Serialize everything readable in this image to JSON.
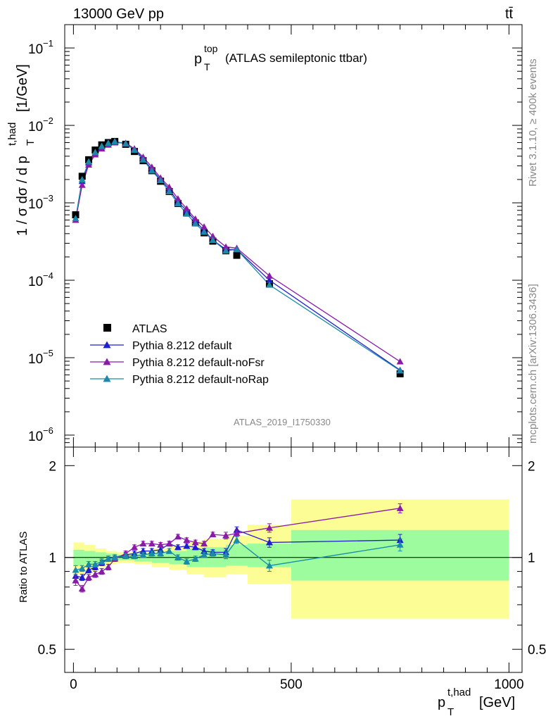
{
  "header": {
    "energy": "13000 GeV pp",
    "process": "tt̄"
  },
  "side": {
    "rivet": "Rivet 3.1.10, ≥ 400k events",
    "mcplots": "mcplots.cern.ch [arXiv:1306.3436]"
  },
  "main_plot": {
    "title_main": "p",
    "title_sup": "top",
    "title_sub": "T",
    "title_rest": "(ATLAS semileptonic ttbar)",
    "ylabel_left": "1 / σ dσ / d p",
    "ylabel_sub": "T",
    "ylabel_sup": "t,had",
    "ylabel_unit": "[1/GeV]",
    "analysis_id": "ATLAS_2019_I1750330",
    "y_ticks": [
      {
        "exp": -1,
        "label": "10",
        "sup": "−1"
      },
      {
        "exp": -2,
        "label": "10",
        "sup": "−2"
      },
      {
        "exp": -3,
        "label": "10",
        "sup": "−3"
      },
      {
        "exp": -4,
        "label": "10",
        "sup": "−4"
      },
      {
        "exp": -5,
        "label": "10",
        "sup": "−5"
      },
      {
        "exp": -6,
        "label": "10",
        "sup": "−6"
      }
    ]
  },
  "ratio_plot": {
    "ylabel": "Ratio to ATLAS",
    "y_ticks": [
      "2",
      "1",
      "0.5"
    ],
    "y_tick_values": [
      2,
      1,
      0.5
    ]
  },
  "x_axis": {
    "label_main": "p",
    "label_sub": "T",
    "label_sup": "t,had",
    "label_unit": "[GeV]",
    "ticks": [
      "0",
      "500",
      "1000"
    ],
    "tick_values": [
      0,
      500,
      1000
    ]
  },
  "legend": [
    {
      "name": "ATLAS",
      "color": "#000000",
      "marker": "square"
    },
    {
      "name": "Pythia 8.212 default",
      "color": "#1f1fd0",
      "marker": "triangle"
    },
    {
      "name": "Pythia 8.212 default-noFsr",
      "color": "#8a1aa8",
      "marker": "triangle"
    },
    {
      "name": "Pythia 8.212 default-noRap",
      "color": "#1a8aa8",
      "marker": "triangle"
    }
  ],
  "chart_data": {
    "type": "scatter",
    "title": "p_T^top (ATLAS semileptonic ttbar)",
    "xlabel": "p_T^{t,had} [GeV]",
    "ylabel": "1 / σ dσ / d p_T^{t,had} [1/GeV]",
    "yscale": "log",
    "xlim": [
      -20,
      1030
    ],
    "ylim": [
      7e-07,
      0.2
    ],
    "ratio_ylim": [
      0.42,
      2.3
    ],
    "x": [
      5,
      20,
      35,
      50,
      65,
      80,
      95,
      120,
      140,
      160,
      180,
      200,
      220,
      240,
      260,
      280,
      300,
      320,
      350,
      375,
      450,
      750
    ],
    "series": [
      {
        "name": "ATLAS",
        "values": [
          0.0007,
          0.0022,
          0.0036,
          0.0048,
          0.0056,
          0.006,
          0.0062,
          0.0057,
          0.0046,
          0.0035,
          0.0026,
          0.0019,
          0.0014,
          0.00098,
          0.00074,
          0.00055,
          0.00041,
          0.00032,
          0.00024,
          0.00021,
          9e-05,
          6.2e-06
        ]
      },
      {
        "name": "Pythia 8.212 default",
        "values": [
          0.0006,
          0.0019,
          0.0033,
          0.0044,
          0.0053,
          0.0059,
          0.0062,
          0.0058,
          0.0049,
          0.0037,
          0.0027,
          0.002,
          0.0015,
          0.00103,
          0.00079,
          0.00058,
          0.00044,
          0.00033,
          0.00025,
          0.00025,
          0.0001,
          6.9e-06
        ]
      },
      {
        "name": "Pythia 8.212 default-noFsr",
        "values": [
          0.0006,
          0.0017,
          0.0031,
          0.0042,
          0.005,
          0.0056,
          0.006,
          0.0059,
          0.005,
          0.0039,
          0.0029,
          0.0021,
          0.0016,
          0.00113,
          0.00084,
          0.00062,
          0.00049,
          0.00037,
          0.00027,
          0.00026,
          0.000114,
          8.9e-06
        ]
      },
      {
        "name": "Pythia 8.212 default-noRap",
        "values": [
          0.00063,
          0.002,
          0.0034,
          0.0045,
          0.0054,
          0.0059,
          0.0062,
          0.0058,
          0.0048,
          0.0036,
          0.0026,
          0.00195,
          0.0014,
          0.00098,
          0.00072,
          0.00054,
          0.00042,
          0.00033,
          0.00024,
          0.00025,
          8.7e-05,
          6.8e-06
        ]
      }
    ],
    "ratios": [
      {
        "name": "Pythia 8.212 default",
        "values": [
          0.87,
          0.86,
          0.91,
          0.93,
          0.96,
          0.99,
          1.0,
          1.02,
          1.03,
          1.05,
          1.05,
          1.06,
          1.11,
          1.08,
          1.09,
          1.08,
          1.05,
          1.04,
          1.04,
          1.23,
          1.12,
          1.14
        ]
      },
      {
        "name": "Pythia 8.212 default-noFsr",
        "values": [
          0.84,
          0.79,
          0.86,
          0.88,
          0.9,
          0.93,
          0.99,
          1.03,
          1.08,
          1.11,
          1.11,
          1.1,
          1.11,
          1.17,
          1.14,
          1.12,
          1.11,
          1.19,
          1.18,
          1.2,
          1.25,
          1.45
        ]
      },
      {
        "name": "Pythia 8.212 default-noRap",
        "values": [
          0.91,
          0.92,
          0.95,
          0.95,
          0.97,
          0.99,
          1.0,
          1.01,
          1.01,
          1.02,
          1.03,
          1.03,
          1.05,
          1.0,
          0.97,
          0.99,
          1.02,
          1.03,
          1.02,
          1.14,
          0.94,
          1.1
        ]
      }
    ],
    "ratio_errors": [
      0.03,
      0.02,
      0.02,
      0.02,
      0.02,
      0.02,
      0.02,
      0.02,
      0.02,
      0.02,
      0.02,
      0.02,
      0.02,
      0.02,
      0.02,
      0.02,
      0.02,
      0.02,
      0.03,
      0.03,
      0.04,
      0.05
    ],
    "uncertainty_bands": {
      "x_edges": [
        0,
        25,
        50,
        75,
        100,
        140,
        180,
        220,
        260,
        300,
        350,
        400,
        500,
        1000
      ],
      "green_lo": [
        0.94,
        0.95,
        0.96,
        0.97,
        0.98,
        0.97,
        0.96,
        0.95,
        0.93,
        0.93,
        0.94,
        0.93,
        0.84
      ],
      "green_hi": [
        1.06,
        1.05,
        1.04,
        1.03,
        1.02,
        1.03,
        1.04,
        1.05,
        1.07,
        1.08,
        1.1,
        1.11,
        1.23
      ],
      "yellow_lo": [
        0.88,
        0.9,
        0.93,
        0.95,
        0.96,
        0.95,
        0.93,
        0.91,
        0.88,
        0.86,
        0.88,
        0.82,
        0.63
      ],
      "yellow_hi": [
        1.12,
        1.1,
        1.07,
        1.05,
        1.04,
        1.05,
        1.07,
        1.09,
        1.13,
        1.15,
        1.18,
        1.28,
        1.55
      ],
      "green_color": "#9dfc9d",
      "yellow_color": "#fdfd96"
    }
  }
}
